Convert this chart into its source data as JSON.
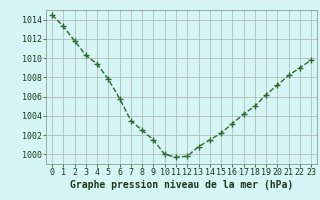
{
  "x": [
    0,
    1,
    2,
    3,
    4,
    5,
    6,
    7,
    8,
    9,
    10,
    11,
    12,
    13,
    14,
    15,
    16,
    17,
    18,
    19,
    20,
    21,
    22,
    23
  ],
  "y": [
    1014.5,
    1013.3,
    1011.8,
    1010.3,
    1009.4,
    1007.8,
    1005.8,
    1003.5,
    1002.5,
    1001.5,
    1000.0,
    999.7,
    999.8,
    1000.8,
    1001.5,
    1002.2,
    1003.2,
    1004.2,
    1005.0,
    1006.2,
    1007.2,
    1008.2,
    1009.0,
    1009.8
  ],
  "line_color": "#2d6a2d",
  "marker": "+",
  "marker_size": 5,
  "bg_color": "#d6f5f5",
  "grid_color": "#b0b0b0",
  "xlabel": "Graphe pression niveau de la mer (hPa)",
  "xlabel_color": "#1a3a1a",
  "xlabel_fontsize": 7,
  "xlim_min": -0.5,
  "xlim_max": 23.5,
  "ylim_min": 999.0,
  "ylim_max": 1015.0,
  "yticks": [
    1000,
    1002,
    1004,
    1006,
    1008,
    1010,
    1012,
    1014
  ],
  "xtick_labels": [
    "0",
    "1",
    "2",
    "3",
    "4",
    "5",
    "6",
    "7",
    "8",
    "9",
    "10",
    "11",
    "12",
    "13",
    "14",
    "15",
    "16",
    "17",
    "18",
    "19",
    "20",
    "21",
    "22",
    "23"
  ],
  "tick_fontsize": 6,
  "tick_color": "#1a3a1a",
  "linewidth": 1.0
}
